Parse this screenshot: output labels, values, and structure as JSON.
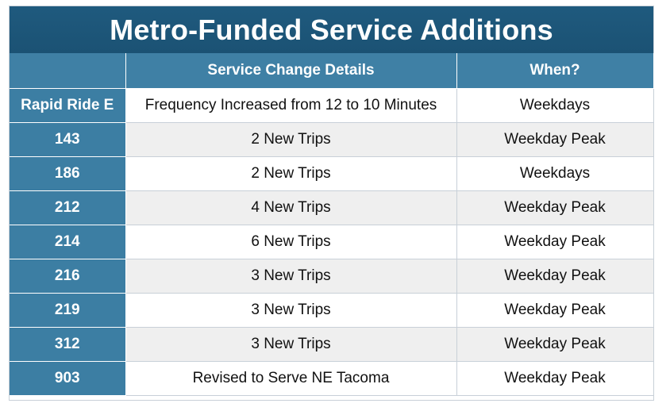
{
  "title": "Metro-Funded Service Additions",
  "columns": {
    "corner": "",
    "details": "Service Change Details",
    "when": "When?"
  },
  "rows": [
    {
      "route": "Rapid Ride E",
      "details": "Frequency Increased from 12 to 10 Minutes",
      "when": "Weekdays"
    },
    {
      "route": "143",
      "details": "2 New Trips",
      "when": "Weekday Peak"
    },
    {
      "route": "186",
      "details": "2 New Trips",
      "when": "Weekdays"
    },
    {
      "route": "212",
      "details": "4 New Trips",
      "when": "Weekday Peak"
    },
    {
      "route": "214",
      "details": "6 New Trips",
      "when": "Weekday Peak"
    },
    {
      "route": "216",
      "details": "3 New Trips",
      "when": "Weekday Peak"
    },
    {
      "route": "219",
      "details": "3 New Trips",
      "when": "Weekday Peak"
    },
    {
      "route": "312",
      "details": "3 New Trips",
      "when": "Weekday Peak"
    },
    {
      "route": "903",
      "details": "Revised to Serve NE Tacoma",
      "when": "Weekday Peak"
    }
  ],
  "colors": {
    "title_bg": "#1f5a7e",
    "header_bg": "#3f80a5",
    "route_bg": "#3c7ea3",
    "row_alt_bg": "#efefef"
  }
}
